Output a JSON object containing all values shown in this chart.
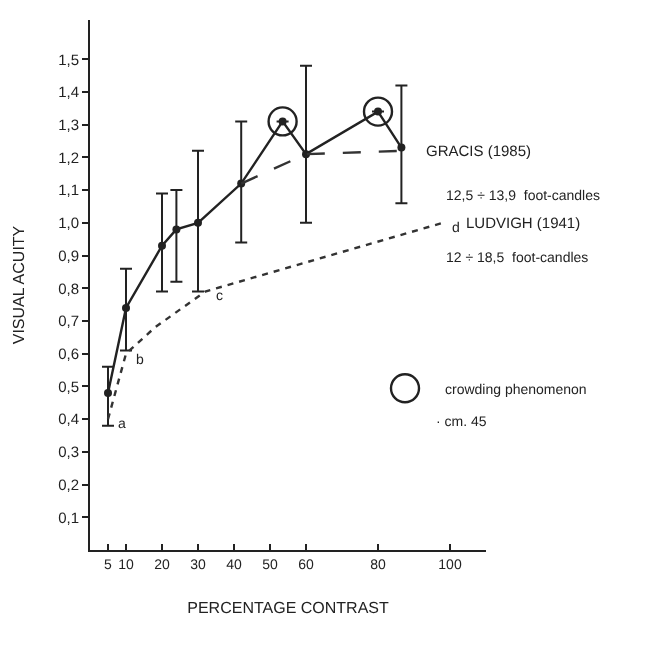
{
  "chart_data": {
    "type": "line",
    "xlabel": "PERCENTAGE CONTRAST",
    "ylabel": "VISUAL ACUITY",
    "xlim": [
      0,
      110
    ],
    "xticks": [
      5,
      10,
      20,
      30,
      40,
      50,
      60,
      80,
      100
    ],
    "ylim": [
      0,
      1.62
    ],
    "yticks": [
      {
        "value": 0.1,
        "label": "0,1"
      },
      {
        "value": 0.2,
        "label": "0,2"
      },
      {
        "value": 0.3,
        "label": "0,3"
      },
      {
        "value": 0.4,
        "label": "0,4"
      },
      {
        "value": 0.5,
        "label": "0,5"
      },
      {
        "value": 0.6,
        "label": "0,6"
      },
      {
        "value": 0.7,
        "label": "0,7"
      },
      {
        "value": 0.8,
        "label": "0,8"
      },
      {
        "value": 0.9,
        "label": "0,9"
      },
      {
        "value": 1.0,
        "label": "1,0"
      },
      {
        "value": 1.1,
        "label": "1,1"
      },
      {
        "value": 1.2,
        "label": "1,2"
      },
      {
        "value": 1.3,
        "label": "1,3"
      },
      {
        "value": 1.4,
        "label": "1,4"
      },
      {
        "value": 1.5,
        "label": "1,5"
      }
    ],
    "legend": "right",
    "series": [
      {
        "color": "#222222",
        "marker": "circle",
        "line_style": "solid",
        "x": [
          5,
          10,
          20,
          24,
          30,
          42,
          53.5,
          60,
          80,
          86.5
        ],
        "values": [
          0.48,
          0.74,
          0.93,
          0.98,
          1.0,
          1.12,
          1.31,
          1.21,
          1.34,
          1.23
        ],
        "errors": [
          [
            0.38,
            0.56
          ],
          [
            0.61,
            0.86
          ],
          [
            0.79,
            1.09
          ],
          [
            0.82,
            1.1
          ],
          [
            0.79,
            1.22
          ],
          [
            0.94,
            1.31
          ],
          null,
          [
            1.0,
            1.48
          ],
          null,
          [
            1.06,
            1.42
          ]
        ]
      },
      {
        "name": "GRACIS (1985)",
        "color": "#333333",
        "marker": "none",
        "line_style": "dashed",
        "x": [
          42,
          60,
          86.5
        ],
        "values": [
          1.12,
          1.21,
          1.22
        ]
      },
      {
        "name": "LUDVIGH (1941)",
        "color": "#333333",
        "marker": "none",
        "line_style": "dotted",
        "x": [
          5,
          10,
          18,
          32,
          98
        ],
        "values": [
          0.4,
          0.6,
          0.68,
          0.79,
          1.0
        ]
      },
      {
        "name": "crowding phenomenon",
        "type": "scatter",
        "color": "#222222",
        "marker": "circle",
        "x": [
          53.5,
          80
        ],
        "values": [
          1.31,
          1.34
        ]
      }
    ],
    "annotations": [
      "12,5 ÷ 13,9  foot-candles",
      "12 ÷ 18,5  foot-candles",
      "· cm. 45",
      {
        "text": "a",
        "x": 5,
        "y": 0.4
      },
      {
        "text": "b",
        "x": 10,
        "y": 0.6
      },
      {
        "text": "c",
        "x": 32,
        "y": 0.79
      },
      {
        "text": "d",
        "x": 98,
        "y": 1.0
      }
    ]
  }
}
